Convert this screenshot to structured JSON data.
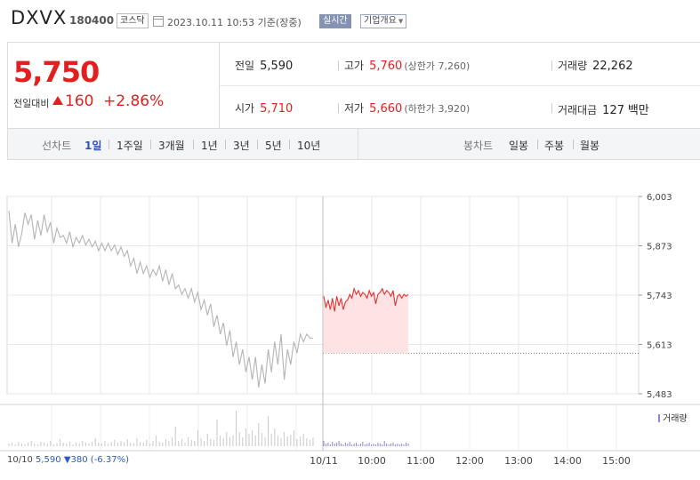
{
  "header": {
    "name": "DXVX",
    "code": "180400",
    "market": "코스닥",
    "datetime": "2023.10.11 10:53 기준(장중)",
    "realtime": "실시간",
    "company_info": "기업개요"
  },
  "quote": {
    "price": "5,750",
    "prev_label": "전일대비",
    "change": "160",
    "change_pct": "+2.86%",
    "cells": {
      "prev": {
        "label": "전일",
        "value": "5,590"
      },
      "high": {
        "label": "고가",
        "value": "5,760",
        "sub": "(상한가 7,260)"
      },
      "volume": {
        "label": "거래량",
        "value": "22,262"
      },
      "open": {
        "label": "시가",
        "value": "5,710"
      },
      "low": {
        "label": "저가",
        "value": "5,660",
        "sub": "(하한가 3,920)"
      },
      "amount": {
        "label": "거래대금",
        "value": "127",
        "unit": "백만"
      }
    }
  },
  "tabs": {
    "line_label": "선차트",
    "line_periods": [
      "1일",
      "1주일",
      "3개월",
      "1년",
      "3년",
      "5년",
      "10년"
    ],
    "active": "1일",
    "candle_label": "봉차트",
    "candle_periods": [
      "일봉",
      "주봉",
      "월봉"
    ]
  },
  "footer": {
    "prev_date": "10/10",
    "prev_close": "5,590",
    "prev_change": "▼380 (-6.37%)"
  },
  "volume_legend": "거래량",
  "colors": {
    "up": "#e21f1f",
    "down": "#2a59c9",
    "prev_line": "#aaaaaa",
    "volume": "#8a86d8"
  },
  "chart_data": {
    "type": "line",
    "x_ticks": [
      "10/10",
      "10/11",
      "10:00",
      "11:00",
      "12:00",
      "13:00",
      "14:00",
      "15:00"
    ],
    "y_ticks": [
      "6,003",
      "5,873",
      "5,743",
      "5,613",
      "5,483"
    ],
    "ylim": [
      5483,
      6003
    ],
    "reference_price": 5590,
    "series": [
      {
        "role": "previous_day",
        "values": [
          5965,
          5880,
          5930,
          5870,
          5905,
          5960,
          5930,
          5955,
          5890,
          5940,
          5900,
          5955,
          5910,
          5935,
          5880,
          5920,
          5895,
          5900,
          5880,
          5910,
          5870,
          5895,
          5880,
          5900,
          5875,
          5890,
          5870,
          5885,
          5860,
          5880,
          5860,
          5880,
          5860,
          5875,
          5850,
          5870,
          5845,
          5860,
          5820,
          5840,
          5800,
          5830,
          5800,
          5820,
          5790,
          5810,
          5795,
          5820,
          5780,
          5810,
          5770,
          5800,
          5760,
          5770,
          5745,
          5760,
          5735,
          5760,
          5725,
          5750,
          5705,
          5730,
          5690,
          5720,
          5660,
          5690,
          5640,
          5670,
          5610,
          5650,
          5580,
          5620,
          5560,
          5600,
          5540,
          5580,
          5520,
          5580,
          5500,
          5560,
          5510,
          5600,
          5540,
          5620,
          5560,
          5640,
          5520,
          5600,
          5560,
          5620,
          5590,
          5640,
          5620,
          5640,
          5630,
          5630
        ]
      },
      {
        "role": "today",
        "values": [
          5740,
          5710,
          5730,
          5705,
          5735,
          5700,
          5740,
          5715,
          5735,
          5705,
          5725,
          5730,
          5745,
          5735,
          5760,
          5745,
          5755,
          5740,
          5750,
          5745,
          5735,
          5755,
          5740,
          5750,
          5720,
          5745,
          5750,
          5760,
          5745,
          5755,
          5750,
          5740,
          5755,
          5715,
          5740,
          5745,
          5735,
          5745,
          5740,
          5745
        ]
      }
    ],
    "volume": {
      "label": "거래량",
      "previous_day": [
        3,
        4,
        2,
        5,
        3,
        2,
        4,
        6,
        3,
        2,
        5,
        4,
        3,
        6,
        2,
        3,
        8,
        4,
        3,
        5,
        2,
        4,
        3,
        6,
        4,
        3,
        5,
        9,
        4,
        3,
        6,
        3,
        5,
        7,
        4,
        6,
        5,
        8,
        4,
        3,
        9,
        5,
        4,
        7,
        3,
        6,
        12,
        5,
        4,
        8,
        6,
        10,
        22,
        6,
        8,
        4,
        10,
        7,
        6,
        18,
        9,
        6,
        14,
        8,
        7,
        30,
        12,
        9,
        16,
        10,
        12,
        40,
        16,
        10,
        20,
        14,
        18,
        12,
        26,
        15,
        10,
        34,
        14,
        20,
        12,
        9,
        16,
        11,
        13,
        18,
        8,
        11,
        14,
        9,
        7,
        10
      ],
      "today": [
        6,
        3,
        4,
        2,
        5,
        3,
        4,
        6,
        3,
        2,
        4,
        3,
        5,
        2,
        3,
        4,
        2,
        3,
        5,
        2,
        3,
        4,
        2,
        3,
        2,
        4,
        3,
        2,
        6,
        3,
        2,
        3,
        4,
        2,
        3,
        2,
        3,
        2,
        4,
        3
      ]
    }
  }
}
